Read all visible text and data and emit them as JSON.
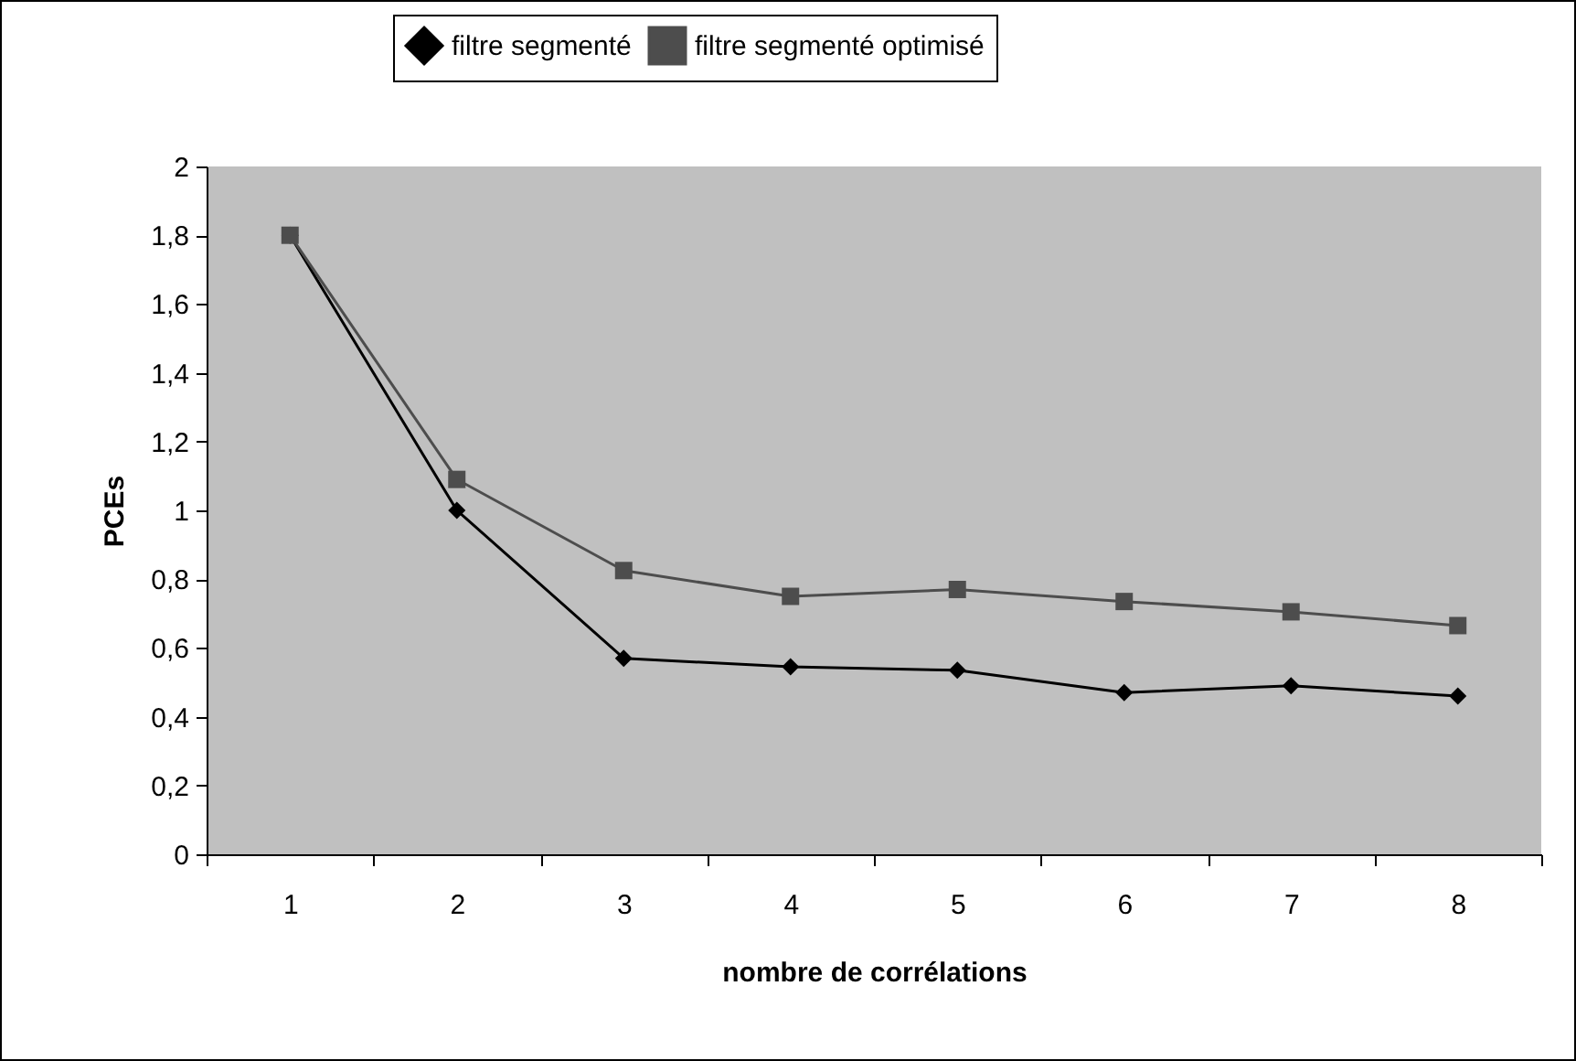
{
  "chart_data": {
    "type": "line",
    "xlabel": "nombre de corrélations",
    "ylabel": "PCEs",
    "categories": [
      "1",
      "2",
      "3",
      "4",
      "5",
      "6",
      "7",
      "8"
    ],
    "series": [
      {
        "name": "filtre segmenté",
        "color": "#000000",
        "marker": "diamond",
        "values": [
          1.8,
          1.0,
          0.57,
          0.545,
          0.535,
          0.47,
          0.49,
          0.46
        ]
      },
      {
        "name": "filtre segmenté optimisé",
        "color": "#4d4d4d",
        "marker": "square",
        "values": [
          1.8,
          1.09,
          0.825,
          0.75,
          0.77,
          0.735,
          0.705,
          0.665
        ]
      }
    ],
    "ylim": [
      0,
      2
    ],
    "yticks": [
      {
        "value": 0,
        "label": "0"
      },
      {
        "value": 0.2,
        "label": "0,2"
      },
      {
        "value": 0.4,
        "label": "0,4"
      },
      {
        "value": 0.6,
        "label": "0,6"
      },
      {
        "value": 0.8,
        "label": "0,8"
      },
      {
        "value": 1,
        "label": "1"
      },
      {
        "value": 1.2,
        "label": "1,2"
      },
      {
        "value": 1.4,
        "label": "1,4"
      },
      {
        "value": 1.6,
        "label": "1,6"
      },
      {
        "value": 1.8,
        "label": "1,8"
      },
      {
        "value": 2,
        "label": "2"
      }
    ],
    "grid": false,
    "legend": "top",
    "line_style": "solid"
  }
}
